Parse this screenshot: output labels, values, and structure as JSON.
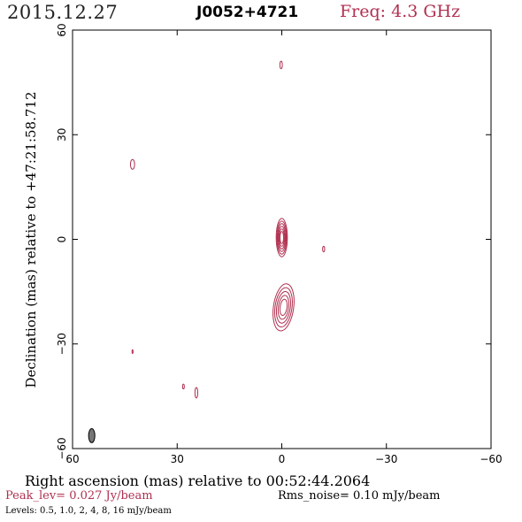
{
  "header": {
    "date": "2015.12.27",
    "source": "J0052+4721",
    "freq": "Freq: 4.3 GHz"
  },
  "axes": {
    "xlabel": "Right ascension (mas) relative to 00:52:44.2064",
    "ylabel": "Declination (mas) relative to +47:21:58.712",
    "xlim": [
      60,
      -60
    ],
    "ylim": [
      -60,
      60
    ],
    "xticks": [
      "60",
      "30",
      "0",
      "−30",
      "−60"
    ],
    "yticks": [
      "−60",
      "−30",
      "0",
      "30",
      "60"
    ]
  },
  "footer": {
    "peak": "Peak_lev=  0.027 Jy/beam",
    "rms": "Rms_noise= 0.10 mJy/beam",
    "levels": "Levels: 0.5, 1.0,    2,    4,    8,   16 mJy/beam"
  },
  "colors": {
    "contour": "#b03050",
    "beam": "#777777",
    "frame": "#000000"
  },
  "chart_data": {
    "type": "contour",
    "contour_levels_mJy": [
      0.5,
      1.0,
      2,
      4,
      8,
      16
    ],
    "peak_Jy_per_beam": 0.027,
    "rms_mJy_per_beam": 0.1,
    "components": [
      {
        "x": 0,
        "y": 0.5,
        "rx": 1.6,
        "ry": 5.5,
        "levels": 6,
        "tilt": 0
      },
      {
        "x": -0.5,
        "y": -19.5,
        "rx": 2.9,
        "ry": 6.8,
        "levels": 5,
        "tilt": 8
      },
      {
        "x": -12,
        "y": -2.8,
        "rx": 0.3,
        "ry": 0.8,
        "levels": 1,
        "tilt": 0
      },
      {
        "x": 0.2,
        "y": 50.0,
        "rx": 0.35,
        "ry": 1.1,
        "levels": 1,
        "tilt": 0
      },
      {
        "x": 42.8,
        "y": 21.5,
        "rx": 0.6,
        "ry": 1.4,
        "levels": 1,
        "tilt": 0
      },
      {
        "x": 42.8,
        "y": -32.2,
        "rx": 0.15,
        "ry": 0.55,
        "levels": 1,
        "tilt": 0
      },
      {
        "x": 28.2,
        "y": -42.2,
        "rx": 0.25,
        "ry": 0.7,
        "levels": 1,
        "tilt": 0
      },
      {
        "x": 24.5,
        "y": -44.0,
        "rx": 0.4,
        "ry": 1.5,
        "levels": 1,
        "tilt": 0
      }
    ],
    "beam": {
      "x": 54.5,
      "y": -56.3,
      "rx": 0.9,
      "ry": 2.0
    }
  }
}
